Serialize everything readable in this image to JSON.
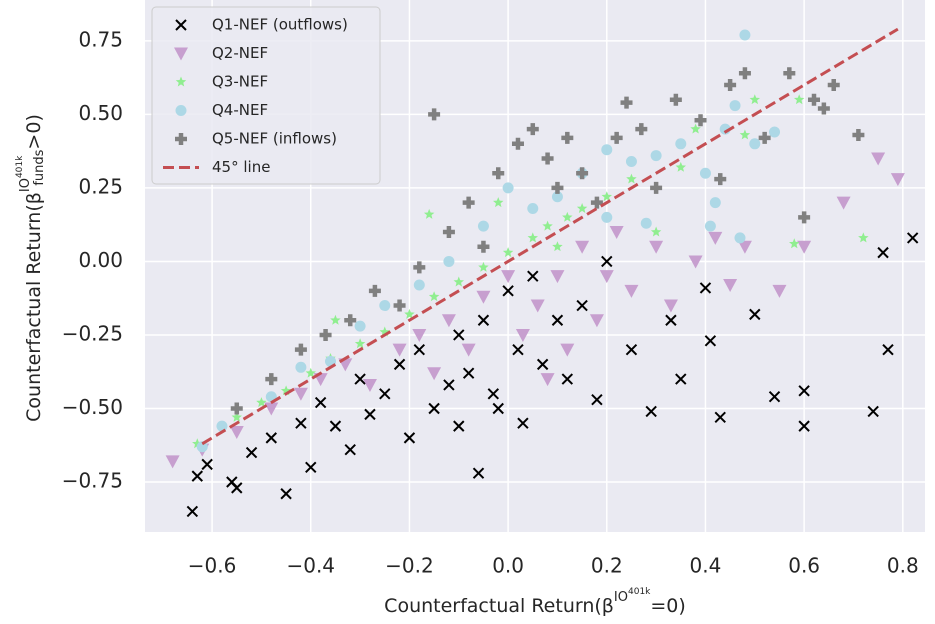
{
  "chart_data": {
    "type": "scatter",
    "xlabel": {
      "main": "Counterfactual Return(β",
      "sup": "IO",
      "supsup": "401k",
      "end": "=0)"
    },
    "ylabel": {
      "main": "Counterfactual Return(β",
      "sup": "IO",
      "supsup": "401k",
      "sub": "funds",
      "end": ">0)"
    },
    "xlim": [
      -0.736,
      0.845
    ],
    "ylim": [
      -0.92,
      0.889
    ],
    "xticks": [
      {
        "value": -0.6,
        "label": "−0.6"
      },
      {
        "value": -0.4,
        "label": "−0.4"
      },
      {
        "value": -0.2,
        "label": "−0.2"
      },
      {
        "value": 0,
        "label": "0.0"
      },
      0.2,
      0.4,
      0.6,
      0.8
    ],
    "yticks": [
      {
        "value": -0.75,
        "label": "−0.75"
      },
      {
        "value": -0.5,
        "label": "−0.50"
      },
      {
        "value": -0.25,
        "label": "−0.25"
      },
      {
        "value": 0,
        "label": "0.00"
      },
      0.25,
      {
        "value": 0.5,
        "label": "0.50"
      },
      0.75
    ],
    "grid": true,
    "legend": "upper left",
    "series": [
      {
        "name": "Q1-NEF (outflows)",
        "color": "#000000",
        "marker": "x",
        "x": [
          -0.64,
          -0.63,
          -0.61,
          -0.56,
          -0.55,
          -0.52,
          -0.45,
          -0.4,
          -0.38,
          -0.35,
          -0.32,
          -0.3,
          -0.28,
          -0.25,
          -0.22,
          -0.2,
          -0.18,
          -0.15,
          -0.12,
          -0.1,
          -0.08,
          -0.06,
          -0.05,
          -0.03,
          0.0,
          0.02,
          0.03,
          0.05,
          0.07,
          0.1,
          0.12,
          0.15,
          0.18,
          0.2,
          0.25,
          0.29,
          0.33,
          0.35,
          0.4,
          0.41,
          0.43,
          0.5,
          0.54,
          0.6,
          0.6,
          0.74,
          0.76,
          0.77,
          0.82,
          -0.48,
          -0.42,
          -0.1,
          -0.02
        ],
        "values": [
          -0.85,
          -0.73,
          -0.69,
          -0.75,
          -0.77,
          -0.65,
          -0.79,
          -0.7,
          -0.48,
          -0.56,
          -0.64,
          -0.4,
          -0.52,
          -0.45,
          -0.35,
          -0.6,
          -0.3,
          -0.5,
          -0.42,
          -0.25,
          -0.38,
          -0.72,
          -0.2,
          -0.45,
          -0.1,
          -0.3,
          -0.55,
          -0.05,
          -0.35,
          -0.2,
          -0.4,
          -0.15,
          -0.47,
          0.0,
          -0.3,
          -0.51,
          -0.2,
          -0.4,
          -0.09,
          -0.27,
          -0.53,
          -0.18,
          -0.46,
          -0.44,
          -0.56,
          -0.51,
          0.03,
          -0.3,
          0.08,
          -0.6,
          -0.55,
          -0.56,
          -0.5
        ]
      },
      {
        "name": "Q2-NEF",
        "color": "#c79fcf",
        "marker": "tri",
        "x": [
          -0.68,
          -0.62,
          -0.55,
          -0.48,
          -0.42,
          -0.38,
          -0.33,
          -0.28,
          -0.22,
          -0.18,
          -0.12,
          -0.08,
          -0.05,
          0.0,
          0.03,
          0.06,
          0.1,
          0.12,
          0.15,
          0.18,
          0.22,
          0.25,
          0.3,
          0.33,
          0.38,
          0.42,
          0.45,
          0.48,
          0.55,
          0.6,
          0.68,
          0.75,
          0.79,
          -0.15,
          0.08,
          0.2
        ],
        "values": [
          -0.68,
          -0.64,
          -0.58,
          -0.5,
          -0.45,
          -0.4,
          -0.35,
          -0.42,
          -0.3,
          -0.25,
          -0.2,
          -0.3,
          -0.12,
          -0.05,
          -0.25,
          -0.15,
          -0.05,
          -0.3,
          0.05,
          -0.2,
          0.1,
          -0.1,
          0.05,
          -0.15,
          0.0,
          0.08,
          -0.08,
          0.05,
          -0.1,
          0.05,
          0.2,
          0.35,
          0.28,
          -0.38,
          -0.4,
          -0.05
        ]
      },
      {
        "name": "Q3-NEF",
        "color": "#90ee90",
        "marker": "star",
        "x": [
          -0.63,
          -0.55,
          -0.5,
          -0.45,
          -0.4,
          -0.36,
          -0.3,
          -0.25,
          -0.2,
          -0.16,
          -0.15,
          -0.1,
          -0.05,
          0.0,
          0.05,
          0.08,
          0.12,
          0.15,
          0.2,
          0.25,
          0.3,
          0.35,
          0.38,
          0.48,
          0.58,
          0.59,
          0.72,
          -0.02,
          0.1,
          -0.35,
          0.5
        ],
        "values": [
          -0.62,
          -0.53,
          -0.48,
          -0.44,
          -0.38,
          -0.33,
          -0.28,
          -0.24,
          -0.18,
          0.16,
          -0.12,
          -0.07,
          -0.02,
          0.03,
          0.08,
          0.12,
          0.15,
          0.18,
          0.22,
          0.28,
          0.1,
          0.32,
          0.45,
          0.43,
          0.06,
          0.55,
          0.08,
          0.2,
          0.05,
          -0.2,
          0.55
        ]
      },
      {
        "name": "Q4-NEF",
        "color": "#add8e6",
        "marker": "circle",
        "x": [
          -0.62,
          -0.58,
          -0.48,
          -0.42,
          -0.36,
          -0.3,
          -0.25,
          -0.18,
          -0.12,
          -0.05,
          0.0,
          0.05,
          0.1,
          0.15,
          0.2,
          0.25,
          0.3,
          0.35,
          0.4,
          0.42,
          0.44,
          0.46,
          0.48,
          0.5,
          0.54,
          0.47,
          0.41,
          0.28,
          0.2
        ],
        "values": [
          -0.63,
          -0.56,
          -0.46,
          -0.36,
          -0.34,
          -0.22,
          -0.15,
          -0.08,
          0.0,
          0.12,
          0.25,
          0.18,
          0.22,
          0.3,
          0.38,
          0.34,
          0.36,
          0.4,
          0.3,
          0.2,
          0.45,
          0.53,
          0.77,
          0.4,
          0.44,
          0.08,
          0.12,
          0.13,
          0.15
        ]
      },
      {
        "name": "Q5-NEF (inflows)",
        "color": "#808080",
        "marker": "plus",
        "x": [
          -0.55,
          -0.48,
          -0.42,
          -0.37,
          -0.32,
          -0.27,
          -0.22,
          -0.18,
          -0.15,
          -0.12,
          -0.08,
          -0.05,
          -0.02,
          0.02,
          0.05,
          0.08,
          0.1,
          0.12,
          0.15,
          0.18,
          0.22,
          0.27,
          0.3,
          0.34,
          0.39,
          0.45,
          0.48,
          0.52,
          0.57,
          0.6,
          0.62,
          0.64,
          0.66,
          0.71,
          0.24,
          0.43
        ],
        "values": [
          -0.5,
          -0.4,
          -0.3,
          -0.25,
          -0.2,
          -0.1,
          -0.15,
          -0.02,
          0.5,
          0.1,
          0.2,
          0.05,
          0.3,
          0.4,
          0.45,
          0.35,
          0.25,
          0.42,
          0.3,
          0.2,
          0.42,
          0.45,
          0.25,
          0.55,
          0.48,
          0.6,
          0.64,
          0.42,
          0.64,
          0.15,
          0.55,
          0.52,
          0.6,
          0.43,
          0.54,
          0.28
        ]
      }
    ],
    "line": {
      "name": "45° line",
      "color": "#c44e52",
      "x": [
        -0.62,
        0.79
      ],
      "values": [
        -0.62,
        0.79
      ]
    }
  }
}
